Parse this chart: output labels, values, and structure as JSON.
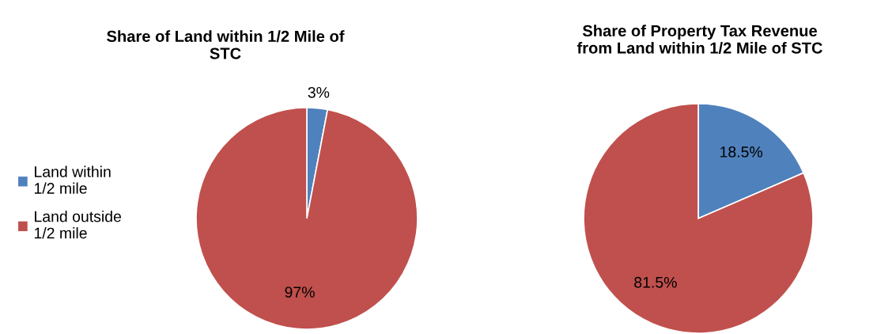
{
  "chart_data": [
    {
      "type": "pie",
      "title": "Share of Land within 1/2 Mile of\nSTC",
      "categories": [
        "Land within\n1/2 mile",
        "Land outside\n1/2 mile"
      ],
      "values": [
        3,
        97
      ],
      "colors": [
        "#4f81bd",
        "#c0504d"
      ],
      "value_labels": [
        "3%",
        "97%"
      ],
      "legend": "left"
    },
    {
      "type": "pie",
      "title": "Share of Property Tax Revenue\nfrom Land within 1/2 Mile of STC",
      "categories": [
        null,
        null
      ],
      "values": [
        18.5,
        81.5
      ],
      "colors": [
        "#4f81bd",
        "#c0504d"
      ],
      "value_labels": [
        "18.5%",
        "81.5%"
      ],
      "legend": false
    }
  ]
}
